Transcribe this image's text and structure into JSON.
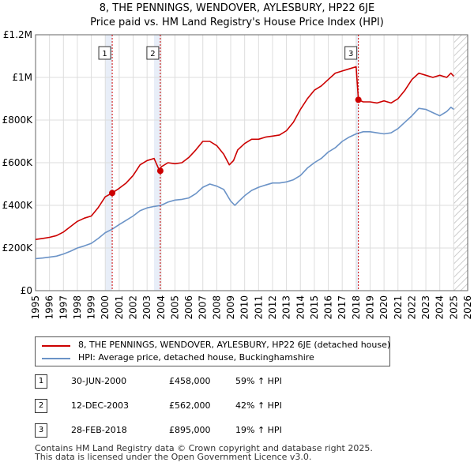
{
  "title_line1": "8, THE PENNINGS, WENDOVER, AYLESBURY, HP22 6JE",
  "title_line2": "Price paid vs. HM Land Registry's House Price Index (HPI)",
  "colors": {
    "property": "#cc0000",
    "hpi": "#6b93c7",
    "shade": "#e8eef8",
    "grid": "#dddddd",
    "marker_line": "#cc0000"
  },
  "legend": {
    "property_label": "8, THE PENNINGS, WENDOVER, AYLESBURY, HP22 6JE (detached house)",
    "hpi_label": "HPI: Average price, detached house, Buckinghamshire"
  },
  "transactions": [
    {
      "num": "1",
      "date": "30-JUN-2000",
      "price": "£458,000",
      "hpi": "59% ↑ HPI"
    },
    {
      "num": "2",
      "date": "12-DEC-2003",
      "price": "£562,000",
      "hpi": "42% ↑ HPI"
    },
    {
      "num": "3",
      "date": "28-FEB-2018",
      "price": "£895,000",
      "hpi": "19% ↑ HPI"
    }
  ],
  "footer_line1": "Contains HM Land Registry data © Crown copyright and database right 2025.",
  "footer_line2": "This data is licensed under the Open Government Licence v3.0.",
  "chart_data": {
    "type": "line",
    "title": "8, THE PENNINGS, WENDOVER, AYLESBURY, HP22 6JE — Price paid vs. HM Land Registry's House Price Index (HPI)",
    "xlabel": "",
    "ylabel": "",
    "xlim": [
      1995,
      2026
    ],
    "ylim": [
      0,
      1200000
    ],
    "x_ticks": [
      1995,
      1996,
      1997,
      1998,
      1999,
      2000,
      2001,
      2002,
      2003,
      2004,
      2005,
      2006,
      2007,
      2008,
      2009,
      2010,
      2011,
      2012,
      2013,
      2014,
      2015,
      2016,
      2017,
      2018,
      2019,
      2020,
      2021,
      2022,
      2023,
      2024,
      2025,
      2026
    ],
    "y_ticks": [
      {
        "value": 0,
        "label": "£0"
      },
      {
        "value": 200000,
        "label": "£200K"
      },
      {
        "value": 400000,
        "label": "£400K"
      },
      {
        "value": 600000,
        "label": "£600K"
      },
      {
        "value": 800000,
        "label": "£800K"
      },
      {
        "value": 1000000,
        "label": "£1M"
      },
      {
        "value": 1200000,
        "label": "£1.2M"
      }
    ],
    "grid": true,
    "shaded_periods": [
      [
        2000.0,
        2000.5
      ],
      [
        2003.5,
        2003.95
      ],
      [
        2018.0,
        2018.16
      ]
    ],
    "hatch_after": 2025.0,
    "sales": [
      {
        "label": "1",
        "x": 2000.5,
        "value": 458000
      },
      {
        "label": "2",
        "x": 2003.95,
        "value": 562000
      },
      {
        "label": "3",
        "x": 2018.16,
        "value": 895000
      }
    ],
    "series": [
      {
        "name": "8, THE PENNINGS, WENDOVER, AYLESBURY, HP22 6JE (detached house)",
        "x": [
          1995.0,
          1995.5,
          1996.0,
          1996.5,
          1997.0,
          1997.5,
          1998.0,
          1998.5,
          1999.0,
          1999.5,
          2000.0,
          2000.5,
          2001.0,
          2001.5,
          2002.0,
          2002.5,
          2003.0,
          2003.5,
          2003.9,
          2004.0,
          2004.5,
          2005.0,
          2005.5,
          2006.0,
          2006.5,
          2007.0,
          2007.5,
          2008.0,
          2008.5,
          2008.9,
          2009.2,
          2009.5,
          2010.0,
          2010.5,
          2011.0,
          2011.5,
          2012.0,
          2012.5,
          2013.0,
          2013.5,
          2014.0,
          2014.5,
          2015.0,
          2015.5,
          2016.0,
          2016.5,
          2017.0,
          2017.5,
          2018.0,
          2018.16,
          2018.5,
          2019.0,
          2019.5,
          2020.0,
          2020.5,
          2021.0,
          2021.5,
          2022.0,
          2022.5,
          2023.0,
          2023.5,
          2024.0,
          2024.5,
          2024.8,
          2025.0
        ],
        "values": [
          240000,
          245000,
          250000,
          258000,
          275000,
          300000,
          325000,
          340000,
          350000,
          390000,
          440000,
          458000,
          480000,
          505000,
          540000,
          590000,
          610000,
          620000,
          562000,
          580000,
          600000,
          595000,
          600000,
          625000,
          660000,
          700000,
          700000,
          680000,
          640000,
          590000,
          610000,
          660000,
          690000,
          710000,
          710000,
          720000,
          725000,
          730000,
          750000,
          790000,
          850000,
          900000,
          940000,
          960000,
          990000,
          1020000,
          1030000,
          1040000,
          1050000,
          895000,
          885000,
          885000,
          880000,
          890000,
          880000,
          900000,
          940000,
          990000,
          1020000,
          1010000,
          1000000,
          1010000,
          1000000,
          1020000,
          1005000
        ]
      },
      {
        "name": "HPI: Average price, detached house, Buckinghamshire",
        "x": [
          1995.0,
          1995.5,
          1996.0,
          1996.5,
          1997.0,
          1997.5,
          1998.0,
          1998.5,
          1999.0,
          1999.5,
          2000.0,
          2000.5,
          2001.0,
          2001.5,
          2002.0,
          2002.5,
          2003.0,
          2003.5,
          2004.0,
          2004.5,
          2005.0,
          2005.5,
          2006.0,
          2006.5,
          2007.0,
          2007.5,
          2008.0,
          2008.5,
          2009.0,
          2009.3,
          2009.6,
          2010.0,
          2010.5,
          2011.0,
          2011.5,
          2012.0,
          2012.5,
          2013.0,
          2013.5,
          2014.0,
          2014.5,
          2015.0,
          2015.5,
          2016.0,
          2016.5,
          2017.0,
          2017.5,
          2018.0,
          2018.5,
          2019.0,
          2019.5,
          2020.0,
          2020.5,
          2021.0,
          2021.5,
          2022.0,
          2022.5,
          2023.0,
          2023.5,
          2024.0,
          2024.5,
          2024.8,
          2025.0
        ],
        "values": [
          150000,
          153000,
          157000,
          162000,
          172000,
          185000,
          200000,
          210000,
          222000,
          245000,
          272000,
          288000,
          310000,
          330000,
          350000,
          375000,
          388000,
          395000,
          400000,
          415000,
          425000,
          428000,
          435000,
          455000,
          485000,
          500000,
          490000,
          475000,
          420000,
          400000,
          420000,
          445000,
          470000,
          485000,
          495000,
          505000,
          505000,
          510000,
          520000,
          540000,
          575000,
          600000,
          620000,
          650000,
          670000,
          700000,
          720000,
          735000,
          745000,
          745000,
          740000,
          735000,
          740000,
          760000,
          790000,
          820000,
          855000,
          850000,
          835000,
          820000,
          840000,
          860000,
          850000
        ]
      }
    ]
  }
}
